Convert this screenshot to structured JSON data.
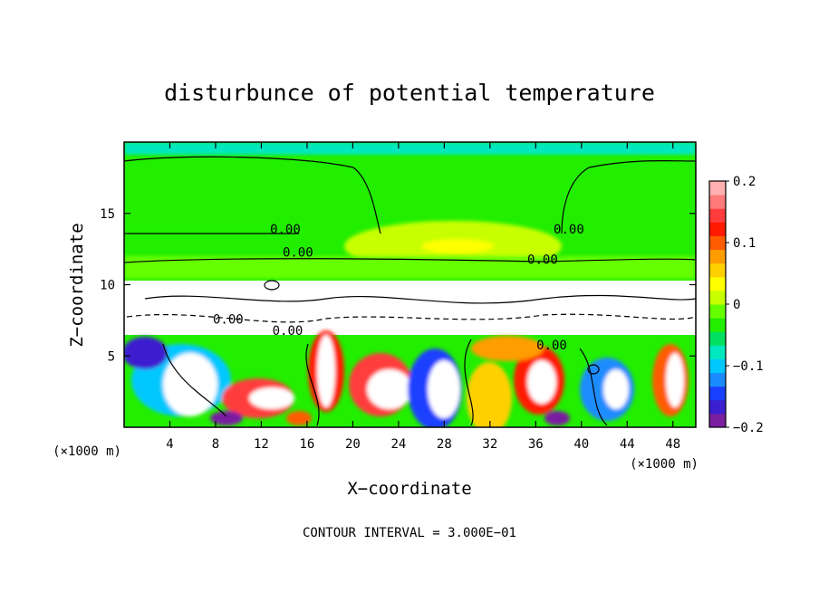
{
  "chart_data": {
    "type": "heatmap",
    "title": "disturbunce of potential temperature",
    "xlabel": "X−coordinate",
    "ylabel": "Z−coordinate",
    "x_unit_label": "(×1000 m)",
    "z_unit_label": "(×1000 m)",
    "xlim": [
      0,
      50
    ],
    "ylim": [
      0,
      20
    ],
    "x_ticks": [
      {
        "value": 4,
        "label": "4"
      },
      {
        "value": 8,
        "label": "8"
      },
      {
        "value": 12,
        "label": "12"
      },
      {
        "value": 16,
        "label": "16"
      },
      {
        "value": 20,
        "label": "20"
      },
      {
        "value": 24,
        "label": "24"
      },
      {
        "value": 28,
        "label": "28"
      },
      {
        "value": 32,
        "label": "32"
      },
      {
        "value": 36,
        "label": "36"
      },
      {
        "value": 40,
        "label": "40"
      },
      {
        "value": 44,
        "label": "44"
      },
      {
        "value": 48,
        "label": "48"
      }
    ],
    "y_ticks": [
      {
        "value": 5,
        "label": "5"
      },
      {
        "value": 10,
        "label": "10"
      },
      {
        "value": 15,
        "label": "15"
      }
    ],
    "colorbar": {
      "range": [
        -0.2,
        0.2
      ],
      "ticks": [
        {
          "value": 0.2,
          "label": "0.2"
        },
        {
          "value": 0.1,
          "label": "0.1"
        },
        {
          "value": 0,
          "label": "0"
        },
        {
          "value": -0.1,
          "label": "−0.1"
        },
        {
          "value": -0.2,
          "label": "−0.2"
        }
      ],
      "colors": [
        "#7a1fa0",
        "#3c1fd0",
        "#1a40ff",
        "#1a8cff",
        "#00c8ff",
        "#00e8c0",
        "#00e060",
        "#22ee00",
        "#66ff00",
        "#c8ff00",
        "#ffff00",
        "#ffd000",
        "#ff9c00",
        "#ff5c00",
        "#ff1a00",
        "#ff3c3c",
        "#ff7a7a",
        "#ffb0b0"
      ]
    },
    "contour_labels": [
      {
        "text": "0.00",
        "x": 14.1,
        "z": 13.7
      },
      {
        "text": "0.00",
        "x": 15.2,
        "z": 12.1
      },
      {
        "text": "0.00",
        "x": 38.9,
        "z": 13.7
      },
      {
        "text": "0.00",
        "x": 36.6,
        "z": 11.6
      },
      {
        "text": "0.00",
        "x": 37.4,
        "z": 5.6
      },
      {
        "text": "0.00",
        "x": 9.1,
        "z": 7.4
      },
      {
        "text": "0.00",
        "x": 14.3,
        "z": 6.6
      }
    ],
    "contour_interval_text": "CONTOUR INTERVAL = 3.000E−01",
    "grid": false
  }
}
